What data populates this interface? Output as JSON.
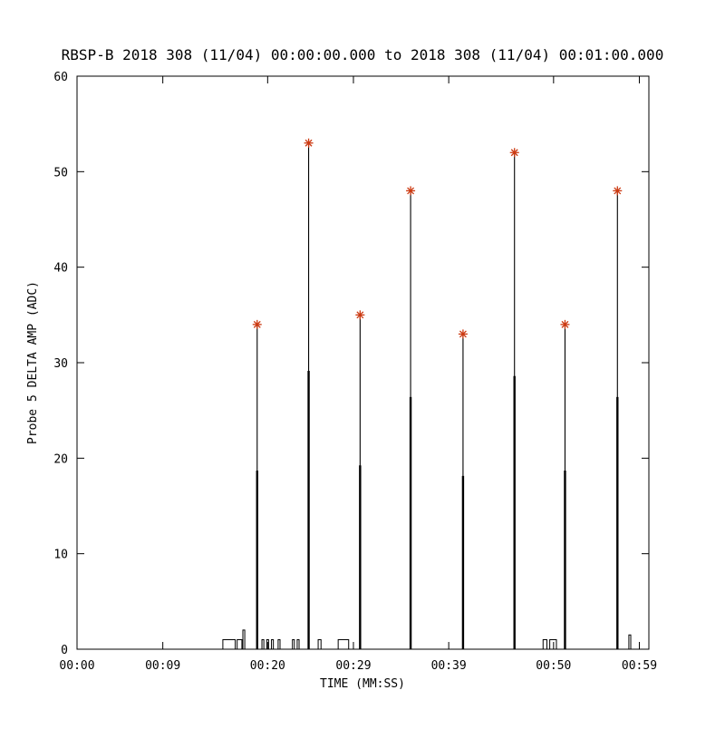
{
  "chart_data": {
    "type": "line",
    "title": "RBSP-B 2018 308 (11/04) 00:00:00.000 to 2018 308 (11/04) 00:01:00.000",
    "xlabel": "TIME (MM:SS)",
    "ylabel": "Probe 5 DELTA AMP (ADC)",
    "xlim": [
      0,
      60
    ],
    "ylim": [
      0,
      60
    ],
    "grid": false,
    "legend": "none",
    "line_color": "#000000",
    "marker_color": "#cc3a12",
    "marker": "asterisk",
    "xticks": [
      {
        "s": 0,
        "label": "00:00"
      },
      {
        "s": 9,
        "label": "00:09"
      },
      {
        "s": 20,
        "label": "00:20"
      },
      {
        "s": 29,
        "label": "00:29"
      },
      {
        "s": 39,
        "label": "00:39"
      },
      {
        "s": 50,
        "label": "00:50"
      },
      {
        "s": 59,
        "label": "00:59"
      }
    ],
    "yticks": [
      0,
      10,
      20,
      30,
      40,
      50,
      60
    ],
    "spikes": [
      {
        "t": 18.9,
        "peak": 34
      },
      {
        "t": 24.3,
        "peak": 53
      },
      {
        "t": 29.7,
        "peak": 35
      },
      {
        "t": 35.0,
        "peak": 48
      },
      {
        "t": 40.5,
        "peak": 33
      },
      {
        "t": 45.9,
        "peak": 52
      },
      {
        "t": 51.2,
        "peak": 34
      },
      {
        "t": 56.7,
        "peak": 48
      }
    ],
    "baseline_pulses": [
      [
        15.3,
        16.6,
        1
      ],
      [
        16.8,
        17.3,
        1
      ],
      [
        17.4,
        17.6,
        2
      ],
      [
        19.4,
        19.6,
        1
      ],
      [
        19.9,
        20.1,
        1
      ],
      [
        20.4,
        20.6,
        1
      ],
      [
        21.1,
        21.3,
        1
      ],
      [
        22.6,
        22.8,
        1
      ],
      [
        23.1,
        23.3,
        1
      ],
      [
        25.3,
        25.6,
        1
      ],
      [
        27.4,
        28.5,
        1
      ],
      [
        48.9,
        49.3,
        1
      ],
      [
        49.6,
        50.3,
        1
      ],
      [
        57.9,
        58.1,
        1.5
      ]
    ]
  }
}
